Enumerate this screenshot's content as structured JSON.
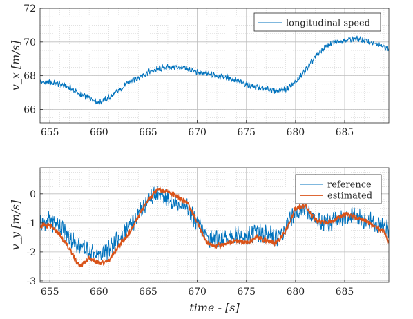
{
  "chart_data": [
    {
      "type": "line",
      "title": "",
      "xlabel": "",
      "ylabel": "v_x [m/s]",
      "xlim": [
        654,
        689.5
      ],
      "ylim": [
        65.2,
        72
      ],
      "xticks": [
        655,
        660,
        665,
        670,
        675,
        680,
        685
      ],
      "yticks": [
        66,
        68,
        70,
        72
      ],
      "grid": true,
      "legend_position": "top-right",
      "series": [
        {
          "name": "longitudinal speed",
          "color": "#0072BD",
          "x": [
            654,
            655,
            656,
            657,
            658,
            659,
            660,
            661,
            662,
            663,
            664,
            665,
            666,
            667,
            668,
            669,
            670,
            671,
            672,
            673,
            674,
            675,
            676,
            677,
            678,
            679,
            680,
            681,
            682,
            683,
            684,
            685,
            686,
            687,
            688,
            689,
            689.5
          ],
          "y": [
            67.6,
            67.6,
            67.5,
            67.3,
            66.9,
            66.7,
            66.4,
            66.7,
            67.1,
            67.6,
            67.9,
            68.2,
            68.4,
            68.5,
            68.5,
            68.4,
            68.2,
            68.1,
            68.0,
            67.9,
            67.7,
            67.5,
            67.3,
            67.2,
            67.1,
            67.2,
            67.6,
            68.3,
            69.1,
            69.7,
            70.0,
            70.1,
            70.2,
            70.1,
            69.9,
            69.7,
            69.6
          ]
        }
      ]
    },
    {
      "type": "line",
      "title": "",
      "xlabel": "time - [s]",
      "ylabel": "v_y [m/s]",
      "xlim": [
        654,
        689.5
      ],
      "ylim": [
        -3.05,
        0.9
      ],
      "xticks": [
        655,
        660,
        665,
        670,
        675,
        680,
        685
      ],
      "yticks": [
        -3,
        -2,
        -1,
        0
      ],
      "grid": true,
      "legend_position": "top-right",
      "series": [
        {
          "name": "reference",
          "color": "#0072BD",
          "x": [
            654,
            655,
            656,
            657,
            658,
            659,
            660,
            661,
            662,
            663,
            664,
            665,
            666,
            667,
            668,
            669,
            670,
            671,
            672,
            673,
            674,
            675,
            676,
            677,
            678,
            679,
            680,
            681,
            682,
            683,
            684,
            685,
            686,
            687,
            688,
            689,
            689.5
          ],
          "y": [
            -1.0,
            -0.9,
            -1.1,
            -1.5,
            -1.8,
            -2.0,
            -2.1,
            -1.9,
            -1.6,
            -1.2,
            -0.7,
            -0.2,
            0.0,
            -0.2,
            -0.3,
            -0.5,
            -1.0,
            -1.5,
            -1.6,
            -1.5,
            -1.4,
            -1.5,
            -1.3,
            -1.4,
            -1.5,
            -1.2,
            -0.6,
            -0.5,
            -0.9,
            -1.0,
            -0.9,
            -0.8,
            -0.8,
            -0.9,
            -1.0,
            -1.1,
            -1.2
          ]
        },
        {
          "name": "estimated",
          "color": "#D95319",
          "x": [
            654,
            655,
            656,
            657,
            658,
            659,
            660,
            661,
            662,
            663,
            664,
            665,
            666,
            667,
            668,
            669,
            670,
            671,
            672,
            673,
            674,
            675,
            676,
            677,
            678,
            679,
            680,
            681,
            682,
            683,
            684,
            685,
            686,
            687,
            688,
            689,
            689.5
          ],
          "y": [
            -1.1,
            -1.1,
            -1.4,
            -1.9,
            -2.5,
            -2.2,
            -2.4,
            -2.3,
            -1.8,
            -1.4,
            -0.8,
            -0.2,
            0.15,
            0.1,
            -0.1,
            -0.3,
            -1.0,
            -1.7,
            -1.8,
            -1.7,
            -1.6,
            -1.7,
            -1.5,
            -1.6,
            -1.7,
            -1.3,
            -0.5,
            -0.4,
            -0.9,
            -1.0,
            -0.9,
            -0.7,
            -0.8,
            -0.9,
            -1.1,
            -1.3,
            -1.7
          ]
        }
      ]
    }
  ]
}
